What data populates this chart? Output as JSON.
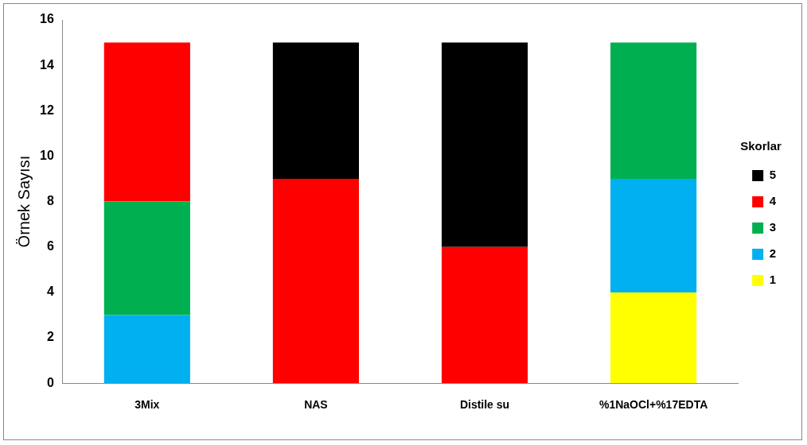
{
  "chart_data": {
    "type": "bar",
    "stacked": true,
    "ylabel": "Örnek Sayısı",
    "legend_title": "Skorlar",
    "legend": "right",
    "grid": false,
    "categories": [
      "3Mix",
      "NAS",
      "Distile su",
      "%1NaOCl+%17EDTA"
    ],
    "ylim": [
      0,
      16
    ],
    "yticks": [
      0,
      2,
      4,
      6,
      8,
      10,
      12,
      14,
      16
    ],
    "series": [
      {
        "name": "1",
        "color": "#ffff00",
        "values": [
          0,
          0,
          0,
          4
        ]
      },
      {
        "name": "2",
        "color": "#00b0f0",
        "values": [
          3,
          0,
          0,
          5
        ]
      },
      {
        "name": "3",
        "color": "#00b050",
        "values": [
          5,
          0,
          0,
          6
        ]
      },
      {
        "name": "4",
        "color": "#ff0000",
        "values": [
          7,
          9,
          6,
          0
        ]
      },
      {
        "name": "5",
        "color": "#000000",
        "values": [
          0,
          6,
          9,
          0
        ]
      }
    ]
  }
}
